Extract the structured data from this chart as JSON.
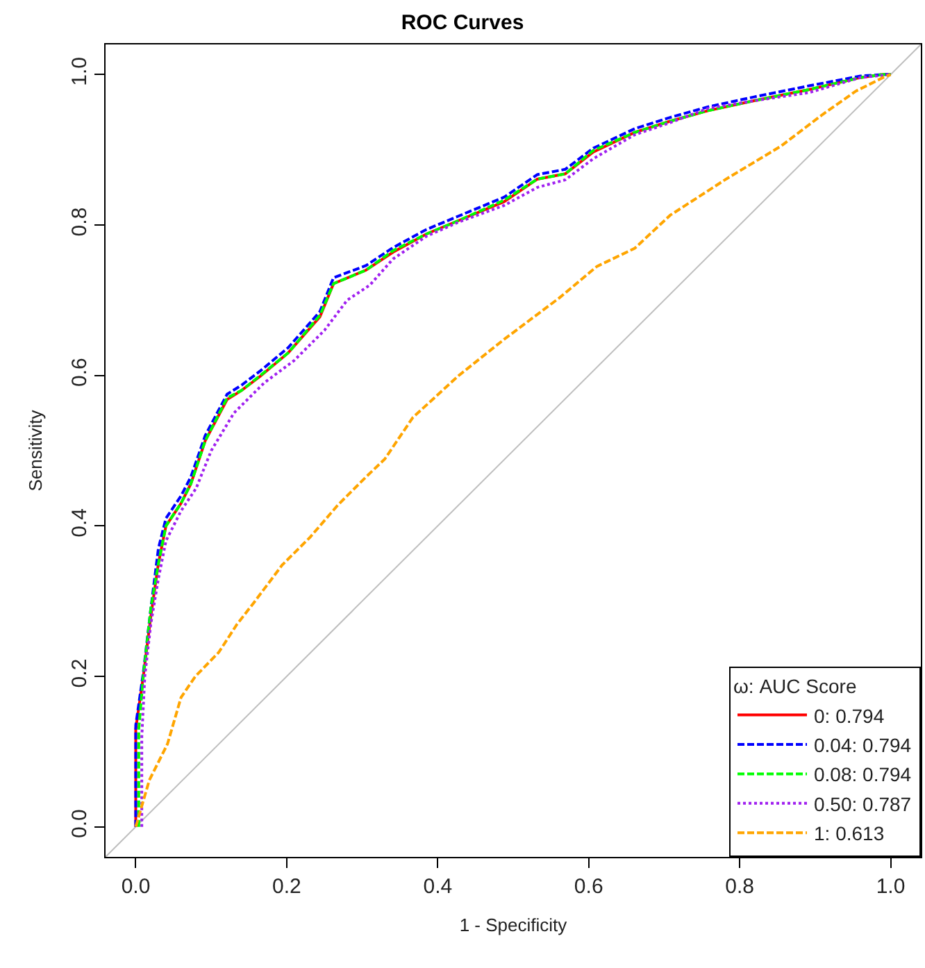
{
  "chart_data": {
    "type": "line",
    "title": "ROC Curves",
    "xlabel": "1 - Specificity",
    "ylabel": "Sensitivity",
    "legend_title": "ω: AUC Score",
    "xlim": [
      -0.04,
      1.04
    ],
    "ylim": [
      -0.04,
      1.04
    ],
    "xticks": [
      {
        "value": 0,
        "label": "0.0"
      },
      0.2,
      0.4,
      0.6,
      0.8,
      {
        "value": 1,
        "label": "1.0"
      }
    ],
    "yticks": [
      {
        "value": 0,
        "label": "0.0"
      },
      0.2,
      0.4,
      0.6,
      0.8,
      {
        "value": 1,
        "label": "1.0"
      }
    ],
    "legend": "bottom right",
    "marker": "none",
    "series": [
      {
        "type": "line",
        "color": "#bebebe",
        "line_style": "solid",
        "x": [
          -0.04,
          1.04
        ],
        "values": [
          -0.04,
          1.04
        ]
      },
      {
        "name": "0: 0.794",
        "color": "#ff0000",
        "line_style": "solid",
        "x": [
          0,
          0,
          0.01,
          0.02,
          0.03,
          0.04,
          0.06,
          0.073,
          0.092,
          0.121,
          0.14,
          0.165,
          0.202,
          0.244,
          0.262,
          0.305,
          0.341,
          0.385,
          0.428,
          0.488,
          0.532,
          0.569,
          0.606,
          0.661,
          0.708,
          0.758,
          0.818,
          0.892,
          0.96,
          0.99,
          1
        ],
        "values": [
          0,
          0.13,
          0.2,
          0.28,
          0.35,
          0.4,
          0.43,
          0.456,
          0.513,
          0.568,
          0.58,
          0.599,
          0.63,
          0.678,
          0.722,
          0.74,
          0.764,
          0.788,
          0.806,
          0.831,
          0.861,
          0.868,
          0.897,
          0.923,
          0.938,
          0.952,
          0.965,
          0.98,
          0.996,
          1.0,
          1
        ]
      },
      {
        "name": "0.04: 0.794",
        "color": "#0000ff",
        "line_style": "dashed",
        "x": [
          0,
          0,
          0.01,
          0.02,
          0.03,
          0.04,
          0.06,
          0.073,
          0.092,
          0.121,
          0.14,
          0.165,
          0.202,
          0.244,
          0.262,
          0.305,
          0.341,
          0.385,
          0.428,
          0.488,
          0.532,
          0.569,
          0.606,
          0.661,
          0.708,
          0.758,
          0.818,
          0.892,
          0.96,
          0.99,
          1
        ],
        "values": [
          0,
          0.135,
          0.205,
          0.29,
          0.37,
          0.41,
          0.44,
          0.465,
          0.52,
          0.575,
          0.587,
          0.606,
          0.637,
          0.685,
          0.73,
          0.746,
          0.77,
          0.794,
          0.812,
          0.837,
          0.867,
          0.874,
          0.902,
          0.928,
          0.943,
          0.957,
          0.97,
          0.985,
          0.998,
          1.0,
          1
        ]
      },
      {
        "name": "0.08: 0.794",
        "color": "#00ff00",
        "line_style": "dashed",
        "x": [
          0.004,
          0.004,
          0.01,
          0.02,
          0.03,
          0.04,
          0.06,
          0.073,
          0.092,
          0.121,
          0.14,
          0.165,
          0.202,
          0.244,
          0.262,
          0.305,
          0.341,
          0.385,
          0.428,
          0.488,
          0.532,
          0.569,
          0.606,
          0.661,
          0.708,
          0.758,
          0.818,
          0.892,
          0.96,
          0.99,
          1
        ],
        "values": [
          0,
          0.13,
          0.2,
          0.29,
          0.35,
          0.4,
          0.43,
          0.456,
          0.513,
          0.57,
          0.58,
          0.6,
          0.63,
          0.68,
          0.722,
          0.74,
          0.766,
          0.788,
          0.806,
          0.833,
          0.861,
          0.868,
          0.899,
          0.923,
          0.938,
          0.952,
          0.965,
          0.98,
          0.996,
          1.0,
          1
        ]
      },
      {
        "name": "0.50: 0.787",
        "color": "#a020f0",
        "line_style": "dotted",
        "x": [
          0.008,
          0.008,
          0.012,
          0.02,
          0.03,
          0.04,
          0.06,
          0.08,
          0.1,
          0.13,
          0.15,
          0.17,
          0.21,
          0.25,
          0.28,
          0.31,
          0.341,
          0.385,
          0.428,
          0.488,
          0.532,
          0.569,
          0.606,
          0.661,
          0.708,
          0.758,
          0.818,
          0.892,
          0.96,
          1
        ],
        "values": [
          0,
          0.12,
          0.2,
          0.27,
          0.33,
          0.38,
          0.42,
          0.45,
          0.5,
          0.55,
          0.57,
          0.59,
          0.62,
          0.66,
          0.7,
          0.72,
          0.755,
          0.785,
          0.804,
          0.826,
          0.85,
          0.86,
          0.888,
          0.92,
          0.936,
          0.955,
          0.965,
          0.976,
          0.996,
          1
        ]
      },
      {
        "name": "1: 0.613",
        "color": "#ffa500",
        "line_style": "dashed",
        "x": [
          0,
          0.018,
          0.042,
          0.06,
          0.079,
          0.11,
          0.134,
          0.158,
          0.194,
          0.231,
          0.268,
          0.305,
          0.33,
          0.367,
          0.428,
          0.488,
          0.561,
          0.611,
          0.661,
          0.708,
          0.782,
          0.855,
          0.91,
          0.954,
          0.99,
          1
        ],
        "values": [
          0,
          0.062,
          0.11,
          0.172,
          0.2,
          0.232,
          0.269,
          0.3,
          0.348,
          0.385,
          0.428,
          0.465,
          0.489,
          0.544,
          0.6,
          0.648,
          0.703,
          0.745,
          0.769,
          0.813,
          0.861,
          0.905,
          0.947,
          0.978,
          0.996,
          1
        ]
      }
    ]
  }
}
